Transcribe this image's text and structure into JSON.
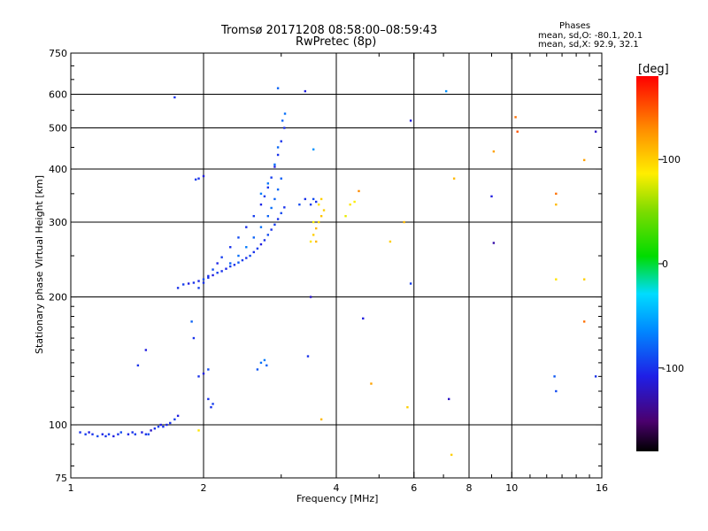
{
  "title": "Tromsø 20171208 08:58:00–08:59:43",
  "subtitle": "RwPretec (8p)",
  "phases": {
    "heading": "Phases",
    "line1": "mean, sd,O: -80.1, 20.1",
    "line2": "mean, sd,X:  92.9, 32.1"
  },
  "colorbar": {
    "unit": "[deg]",
    "ticks": [
      "100",
      "0",
      "-100"
    ],
    "tick_values": [
      100,
      0,
      -100
    ],
    "range": [
      -180,
      180
    ]
  },
  "chart_data": {
    "type": "scatter",
    "xlabel": "Frequency [MHz]",
    "ylabel": "Stationary phase Virtual Height [km]",
    "xscale": "log",
    "yscale": "log",
    "xlim": [
      1,
      16
    ],
    "ylim": [
      75,
      750
    ],
    "x_ticks": [
      1,
      2,
      4,
      6,
      8,
      10,
      16
    ],
    "x_tick_labels": [
      "1",
      "2",
      "4",
      "6",
      "8",
      "10",
      "16"
    ],
    "y_ticks": [
      75,
      100,
      200,
      300,
      400,
      500,
      600,
      750
    ],
    "y_tick_labels": [
      "75",
      "100",
      "200",
      "300",
      "400",
      "500",
      "600",
      "750"
    ],
    "grid_x": [
      2,
      4,
      6,
      8,
      10
    ],
    "grid_y": [
      100,
      200,
      300,
      400,
      500,
      600
    ],
    "colorbar_label": "[deg]",
    "series": [
      {
        "mode": "O",
        "points": [
          [
            1.05,
            96,
            -100
          ],
          [
            1.08,
            95,
            -95
          ],
          [
            1.1,
            96,
            -110
          ],
          [
            1.12,
            95,
            -100
          ],
          [
            1.15,
            94,
            -90
          ],
          [
            1.18,
            95,
            -105
          ],
          [
            1.2,
            94,
            -100
          ],
          [
            1.22,
            95,
            -95
          ],
          [
            1.25,
            94,
            -110
          ],
          [
            1.28,
            95,
            -100
          ],
          [
            1.3,
            96,
            -90
          ],
          [
            1.35,
            95,
            -105
          ],
          [
            1.38,
            96,
            -100
          ],
          [
            1.4,
            95,
            -95
          ],
          [
            1.45,
            96,
            -110
          ],
          [
            1.48,
            95,
            -100
          ],
          [
            1.5,
            95,
            -90
          ],
          [
            1.52,
            97,
            -120
          ],
          [
            1.55,
            98,
            -100
          ],
          [
            1.58,
            99,
            -95
          ],
          [
            1.6,
            100,
            -110
          ],
          [
            1.62,
            99,
            -100
          ],
          [
            1.65,
            100,
            -105
          ],
          [
            1.68,
            101,
            -100
          ],
          [
            1.72,
            103,
            -95
          ],
          [
            1.75,
            105,
            -110
          ],
          [
            1.48,
            150,
            -110
          ],
          [
            1.42,
            138,
            -100
          ],
          [
            1.75,
            210,
            -100
          ],
          [
            1.8,
            214,
            -95
          ],
          [
            1.85,
            215,
            -110
          ],
          [
            1.9,
            216,
            -100
          ],
          [
            1.95,
            218,
            -105
          ],
          [
            2.0,
            220,
            -90
          ],
          [
            2.05,
            222,
            -100
          ],
          [
            2.1,
            225,
            -110
          ],
          [
            2.15,
            228,
            -95
          ],
          [
            2.2,
            230,
            -100
          ],
          [
            2.25,
            233,
            -105
          ],
          [
            2.3,
            236,
            -95
          ],
          [
            2.35,
            238,
            -100
          ],
          [
            2.4,
            241,
            -85
          ],
          [
            2.45,
            244,
            -95
          ],
          [
            2.5,
            247,
            -100
          ],
          [
            2.55,
            250,
            -90
          ],
          [
            2.6,
            255,
            -100
          ],
          [
            2.65,
            260,
            -95
          ],
          [
            2.7,
            266,
            -110
          ],
          [
            2.75,
            272,
            -100
          ],
          [
            2.8,
            280,
            -90
          ],
          [
            2.85,
            288,
            -100
          ],
          [
            2.9,
            296,
            -95
          ],
          [
            2.95,
            305,
            -100
          ],
          [
            3.0,
            315,
            -90
          ],
          [
            3.05,
            325,
            -100
          ],
          [
            1.95,
            210,
            -95
          ],
          [
            2.0,
            216,
            -100
          ],
          [
            2.05,
            224,
            -100
          ],
          [
            2.1,
            232,
            -90
          ],
          [
            2.15,
            240,
            -105
          ],
          [
            2.2,
            248,
            -95
          ],
          [
            2.3,
            262,
            -100
          ],
          [
            2.4,
            276,
            -90
          ],
          [
            2.5,
            292,
            -100
          ],
          [
            2.6,
            310,
            -95
          ],
          [
            2.7,
            330,
            -105
          ],
          [
            2.75,
            345,
            -95
          ],
          [
            2.8,
            362,
            -100
          ],
          [
            2.85,
            382,
            -95
          ],
          [
            2.9,
            405,
            -110
          ],
          [
            2.95,
            432,
            -100
          ],
          [
            3.0,
            465,
            -100
          ],
          [
            3.05,
            500,
            -100
          ],
          [
            2.3,
            240,
            -80
          ],
          [
            2.4,
            250,
            -75
          ],
          [
            2.5,
            262,
            -70
          ],
          [
            2.6,
            276,
            -80
          ],
          [
            2.7,
            292,
            -75
          ],
          [
            2.8,
            310,
            -80
          ],
          [
            2.85,
            324,
            -75
          ],
          [
            2.9,
            340,
            -80
          ],
          [
            2.95,
            358,
            -78
          ],
          [
            3.0,
            380,
            -82
          ],
          [
            2.7,
            350,
            -70
          ],
          [
            2.8,
            370,
            -72
          ],
          [
            2.9,
            410,
            -75
          ],
          [
            2.95,
            450,
            -78
          ],
          [
            3.02,
            520,
            -80
          ],
          [
            3.06,
            540,
            -75
          ],
          [
            1.95,
            380,
            -100
          ],
          [
            2.0,
            385,
            -110
          ],
          [
            1.92,
            378,
            -95
          ],
          [
            1.9,
            160,
            -100
          ],
          [
            1.88,
            175,
            -80
          ],
          [
            1.95,
            130,
            -100
          ],
          [
            2.0,
            132,
            -110
          ],
          [
            2.05,
            115,
            -100
          ],
          [
            2.1,
            112,
            -95
          ],
          [
            2.08,
            110,
            -100
          ],
          [
            2.05,
            135,
            -90
          ],
          [
            1.72,
            590,
            -100
          ],
          [
            2.95,
            620,
            -80
          ],
          [
            3.4,
            610,
            -110
          ],
          [
            2.7,
            140,
            -75
          ],
          [
            2.75,
            142,
            -70
          ],
          [
            2.78,
            138,
            -80
          ],
          [
            2.65,
            135,
            -85
          ],
          [
            3.3,
            330,
            -90
          ],
          [
            3.4,
            340,
            -100
          ],
          [
            3.5,
            330,
            -95
          ],
          [
            3.55,
            340,
            -90
          ],
          [
            3.6,
            335,
            -100
          ],
          [
            3.45,
            145,
            -100
          ],
          [
            3.5,
            200,
            -120
          ],
          [
            3.55,
            445,
            -60
          ],
          [
            4.6,
            178,
            -110
          ],
          [
            5.9,
            520,
            -110
          ],
          [
            7.2,
            115,
            -120
          ],
          [
            9.0,
            345,
            -110
          ],
          [
            9.1,
            268,
            -130
          ],
          [
            12.5,
            130,
            -85
          ],
          [
            12.6,
            120,
            -90
          ],
          [
            15.5,
            130,
            -100
          ],
          [
            15.5,
            490,
            -120
          ],
          [
            7.1,
            610,
            -60
          ],
          [
            5.9,
            215,
            -95
          ]
        ]
      },
      {
        "mode": "X",
        "points": [
          [
            3.5,
            270,
            90
          ],
          [
            3.55,
            280,
            100
          ],
          [
            3.6,
            290,
            110
          ],
          [
            3.65,
            300,
            95
          ],
          [
            3.7,
            310,
            105
          ],
          [
            3.75,
            320,
            100
          ],
          [
            3.55,
            300,
            85
          ],
          [
            3.65,
            330,
            90
          ],
          [
            3.7,
            340,
            100
          ],
          [
            3.6,
            270,
            110
          ],
          [
            4.2,
            310,
            80
          ],
          [
            4.3,
            330,
            90
          ],
          [
            4.4,
            335,
            85
          ],
          [
            4.5,
            355,
            130
          ],
          [
            5.3,
            270,
            100
          ],
          [
            5.7,
            300,
            110
          ],
          [
            4.8,
            125,
            120
          ],
          [
            5.8,
            110,
            100
          ],
          [
            7.3,
            85,
            100
          ],
          [
            7.4,
            380,
            110
          ],
          [
            10.2,
            530,
            140
          ],
          [
            10.3,
            490,
            150
          ],
          [
            12.6,
            330,
            110
          ],
          [
            12.6,
            350,
            140
          ],
          [
            12.6,
            220,
            90
          ],
          [
            14.6,
            220,
            100
          ],
          [
            14.6,
            420,
            120
          ],
          [
            14.6,
            175,
            140
          ],
          [
            9.1,
            440,
            120
          ],
          [
            3.7,
            103,
            110
          ],
          [
            1.95,
            97,
            90
          ]
        ]
      }
    ]
  }
}
